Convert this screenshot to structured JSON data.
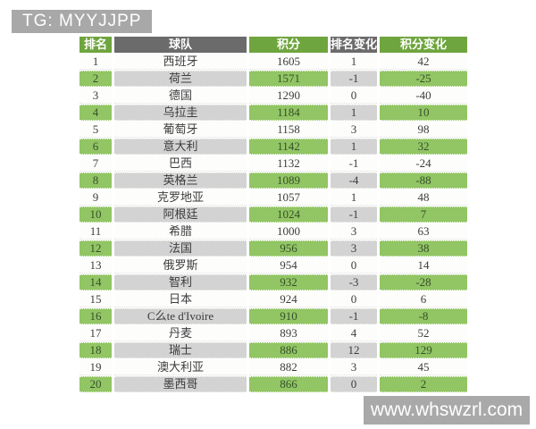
{
  "badge": {
    "text": "TG: MYYJJPP"
  },
  "watermark": {
    "text": "www.whswzrl.com"
  },
  "colors": {
    "header_green": "#6fa53e",
    "header_gray": "#6b6b6b",
    "row_green": "#92c564",
    "row_gray": "#d3d3d3",
    "badge_gray": "#a8a8a8",
    "watermark_gray": "#a9a9a9",
    "body_text": "#3c3c3c",
    "header_text": "#ffffff"
  },
  "chart_data": {
    "type": "table",
    "title": "",
    "columns": [
      "排名",
      "球队",
      "积分",
      "排名变化",
      "积分变化"
    ],
    "rows": [
      [
        1,
        "西班牙",
        1605,
        1,
        42
      ],
      [
        2,
        "荷兰",
        1571,
        -1,
        -25
      ],
      [
        3,
        "德国",
        1290,
        0,
        -40
      ],
      [
        4,
        "乌拉圭",
        1184,
        1,
        10
      ],
      [
        5,
        "葡萄牙",
        1158,
        3,
        98
      ],
      [
        6,
        "意大利",
        1142,
        1,
        32
      ],
      [
        7,
        "巴西",
        1132,
        -1,
        -24
      ],
      [
        8,
        "英格兰",
        1089,
        -4,
        -88
      ],
      [
        9,
        "克罗地亚",
        1057,
        1,
        48
      ],
      [
        10,
        "阿根廷",
        1024,
        -1,
        7
      ],
      [
        11,
        "希腊",
        1000,
        3,
        63
      ],
      [
        12,
        "法国",
        956,
        3,
        38
      ],
      [
        13,
        "俄罗斯",
        954,
        0,
        14
      ],
      [
        14,
        "智利",
        932,
        -3,
        -28
      ],
      [
        15,
        "日本",
        924,
        0,
        6
      ],
      [
        16,
        "C么te d'Ivoire",
        910,
        -1,
        -8
      ],
      [
        17,
        "丹麦",
        893,
        4,
        52
      ],
      [
        18,
        "瑞士",
        886,
        12,
        129
      ],
      [
        19,
        "澳大利亚",
        882,
        3,
        45
      ],
      [
        20,
        "墨西哥",
        866,
        0,
        2
      ]
    ]
  }
}
